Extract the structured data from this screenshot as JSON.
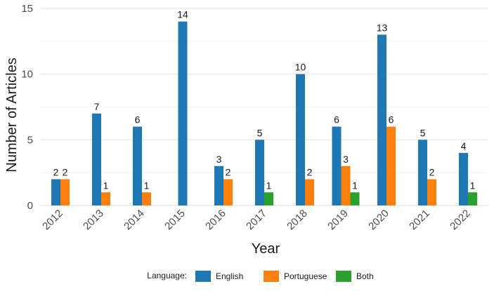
{
  "chart_data": {
    "type": "bar",
    "title": "",
    "xlabel": "Year",
    "ylabel": "Number of Articles",
    "categories": [
      "2012",
      "2013",
      "2014",
      "2015",
      "2016",
      "2017",
      "2018",
      "2019",
      "2020",
      "2021",
      "2022"
    ],
    "series": [
      {
        "name": "English",
        "color": "#1f77b4",
        "values": [
          2,
          7,
          6,
          14,
          3,
          5,
          10,
          6,
          13,
          5,
          4
        ]
      },
      {
        "name": "Portuguese",
        "color": "#ff7f0e",
        "values": [
          2,
          1,
          1,
          0,
          2,
          0,
          2,
          3,
          6,
          2,
          0
        ]
      },
      {
        "name": "Both",
        "color": "#2ca02c",
        "values": [
          0,
          0,
          0,
          0,
          0,
          1,
          0,
          1,
          0,
          0,
          1
        ]
      }
    ],
    "ylim": [
      0,
      15
    ],
    "yticks": [
      0,
      5,
      10,
      15
    ],
    "grid": true,
    "legend": {
      "title": "Language:",
      "placement": "bottom"
    }
  }
}
